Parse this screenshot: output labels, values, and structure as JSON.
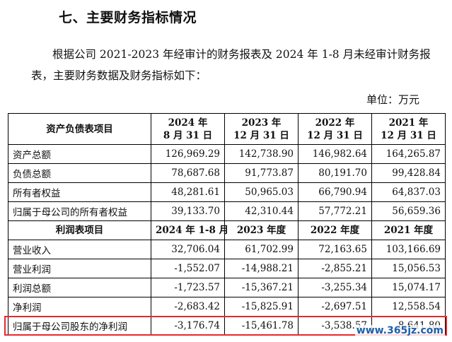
{
  "section_title": "七、主要财务指标情况",
  "intro_text": "根据公司 2021-2023 年经审计的财务报表及 2024 年 1-8 月未经审计财务报表，主要财务数据及财务指标如下：",
  "unit_label": "单位：万元",
  "balance_header": {
    "label": "资产负债表项目",
    "periods": [
      [
        "2024 年",
        "8 月 31 日"
      ],
      [
        "2023 年",
        "12 月 31 日"
      ],
      [
        "2022 年",
        "12 月 31 日"
      ],
      [
        "2021 年",
        "12 月 31 日"
      ]
    ]
  },
  "balance_rows": [
    {
      "label": "资产总额",
      "values": [
        "126,969.29",
        "142,738.90",
        "146,982.64",
        "164,265.87"
      ]
    },
    {
      "label": "负债总额",
      "values": [
        "78,687.68",
        "91,773.87",
        "80,191.70",
        "99,428.84"
      ]
    },
    {
      "label": "所有者权益",
      "values": [
        "48,281.61",
        "50,965.03",
        "66,790.94",
        "64,837.03"
      ]
    },
    {
      "label": "归属于母公司的所有者权益",
      "values": [
        "39,133.70",
        "42,310.44",
        "57,772.21",
        "56,659.36"
      ]
    }
  ],
  "income_header": {
    "label": "利润表项目",
    "periods": [
      "2024 年 1-8 月",
      "2023 年度",
      "2022 年度",
      "2021 年度"
    ]
  },
  "income_rows": [
    {
      "label": "营业收入",
      "values": [
        "32,706.04",
        "61,702.99",
        "72,163.65",
        "103,166.69"
      ]
    },
    {
      "label": "营业利润",
      "values": [
        "-1,552.07",
        "-14,988.21",
        "-2,855.21",
        "15,056.53"
      ]
    },
    {
      "label": "利润总额",
      "values": [
        "-1,723.57",
        "-15,367.21",
        "-3,255.34",
        "15,074.17"
      ]
    },
    {
      "label": "净利润",
      "values": [
        "-2,683.42",
        "-15,825.91",
        "-2,697.51",
        "12,558.54"
      ]
    },
    {
      "label": "归属于母公司股东的净利润",
      "values": [
        "-3,176.74",
        "-15,461.78",
        "-3,538.57",
        "8,641.80"
      ]
    }
  ],
  "watermark": "www.365jz.com",
  "colors": {
    "highlight_border": "#e8282d",
    "watermark": "#1d5fa8"
  }
}
